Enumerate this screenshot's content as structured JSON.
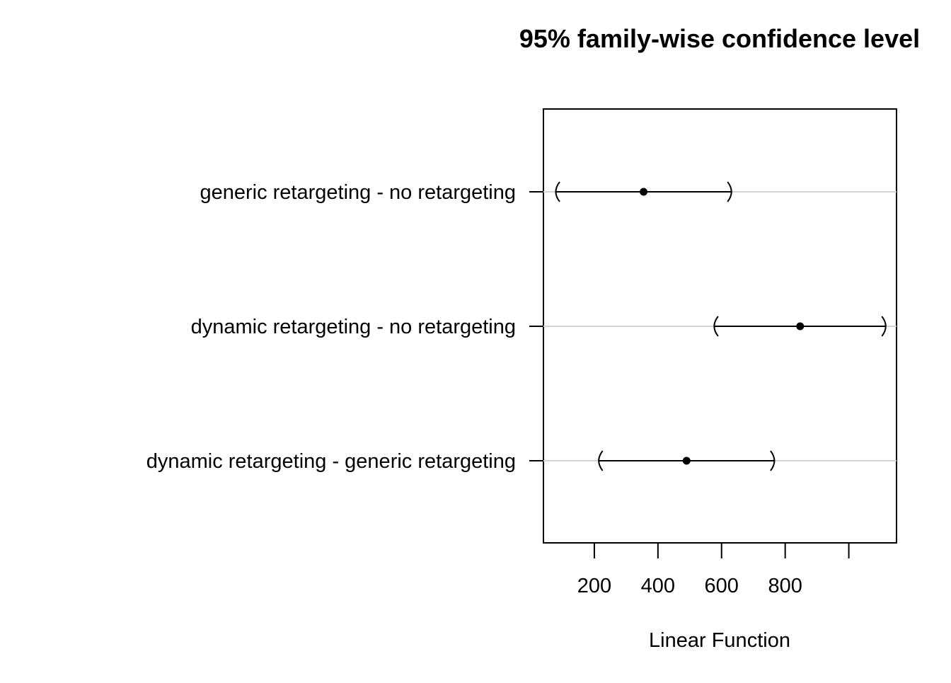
{
  "chart_data": {
    "type": "interval",
    "title": "95% family-wise confidence level",
    "xlabel": "Linear Function",
    "ylabel": "",
    "xlim": [
      40,
      1150
    ],
    "xticks": [
      200,
      400,
      600,
      800,
      1000
    ],
    "xtick_labels": [
      "200",
      "400",
      "600",
      "800",
      ""
    ],
    "grid": "horizontal reference lines at each comparison",
    "legend": "none",
    "categories": [
      "generic retargeting - no retargeting",
      "dynamic retargeting - no retargeting",
      "dynamic retargeting - generic retargeting"
    ],
    "estimates": [
      355,
      847,
      490
    ],
    "lower": [
      80,
      578,
      215
    ],
    "upper": [
      630,
      1115,
      765
    ],
    "colors": {
      "mark": "#000000",
      "grid": "#d3d3d3",
      "frame": "#000000"
    }
  }
}
